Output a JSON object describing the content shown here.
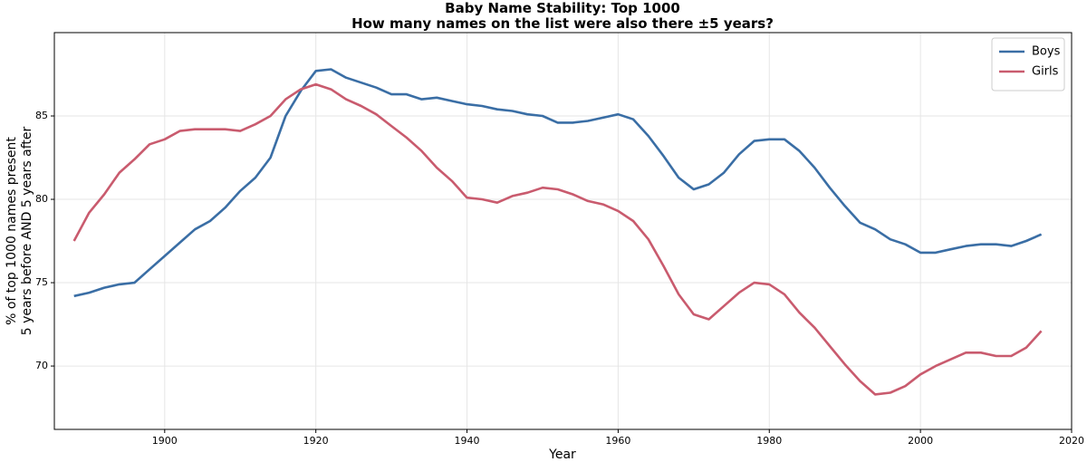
{
  "chart_data": {
    "type": "line",
    "title": "Baby Name Stability: Top 1000",
    "subtitle": "How many names on the list were also there ±5 years?",
    "xlabel": "Year",
    "ylabel": [
      "% of top 1000 names present",
      "5 years before AND 5 years after"
    ],
    "x": [
      1888,
      1890,
      1892,
      1894,
      1896,
      1898,
      1900,
      1902,
      1904,
      1906,
      1908,
      1910,
      1912,
      1914,
      1916,
      1918,
      1920,
      1922,
      1924,
      1926,
      1928,
      1930,
      1932,
      1934,
      1936,
      1938,
      1940,
      1942,
      1944,
      1946,
      1948,
      1950,
      1952,
      1954,
      1956,
      1958,
      1960,
      1962,
      1964,
      1966,
      1968,
      1970,
      1972,
      1974,
      1976,
      1978,
      1980,
      1982,
      1984,
      1986,
      1988,
      1990,
      1992,
      1994,
      1996,
      1998,
      2000,
      2002,
      2004,
      2006,
      2008,
      2010,
      2012,
      2014,
      2016
    ],
    "series": [
      {
        "name": "Boys",
        "color": "#3a6ea5",
        "values": [
          74.2,
          74.4,
          74.7,
          74.9,
          75.0,
          75.8,
          76.6,
          77.4,
          78.2,
          78.7,
          79.5,
          80.5,
          81.3,
          82.5,
          85.0,
          86.5,
          87.7,
          87.8,
          87.3,
          87.0,
          86.7,
          86.3,
          86.3,
          86.0,
          86.1,
          85.9,
          85.7,
          85.6,
          85.4,
          85.3,
          85.1,
          85.0,
          84.6,
          84.6,
          84.7,
          84.9,
          85.1,
          84.8,
          83.8,
          82.6,
          81.3,
          80.6,
          80.9,
          81.6,
          82.7,
          83.5,
          83.6,
          83.6,
          82.9,
          81.9,
          80.7,
          79.6,
          78.6,
          78.2,
          77.6,
          77.3,
          76.8,
          76.8,
          77.0,
          77.2,
          77.3,
          77.3,
          77.2,
          77.5,
          77.9
        ]
      },
      {
        "name": "Girls",
        "color": "#c95b6e",
        "values": [
          77.5,
          79.2,
          80.3,
          81.6,
          82.4,
          83.3,
          83.6,
          84.1,
          84.2,
          84.2,
          84.2,
          84.1,
          84.5,
          85.0,
          86.0,
          86.6,
          86.9,
          86.6,
          86.0,
          85.6,
          85.1,
          84.4,
          83.7,
          82.9,
          81.9,
          81.1,
          80.1,
          80.0,
          79.8,
          80.2,
          80.4,
          80.7,
          80.6,
          80.3,
          79.9,
          79.7,
          79.3,
          78.7,
          77.6,
          76.0,
          74.3,
          73.1,
          72.8,
          73.6,
          74.4,
          75.0,
          74.9,
          74.3,
          73.2,
          72.3,
          71.2,
          70.1,
          69.1,
          68.3,
          68.4,
          68.8,
          69.5,
          70.0,
          70.4,
          70.8,
          70.8,
          70.6,
          70.6,
          71.1,
          72.1
        ]
      }
    ],
    "xlim": [
      1885.4,
      2020
    ],
    "xticks": [
      1900,
      1920,
      1940,
      1960,
      1980,
      2000,
      2020
    ],
    "ylim": [
      66.2,
      90
    ],
    "yticks": [
      70,
      75,
      80,
      85
    ],
    "grid": true,
    "legend": "upper right"
  }
}
